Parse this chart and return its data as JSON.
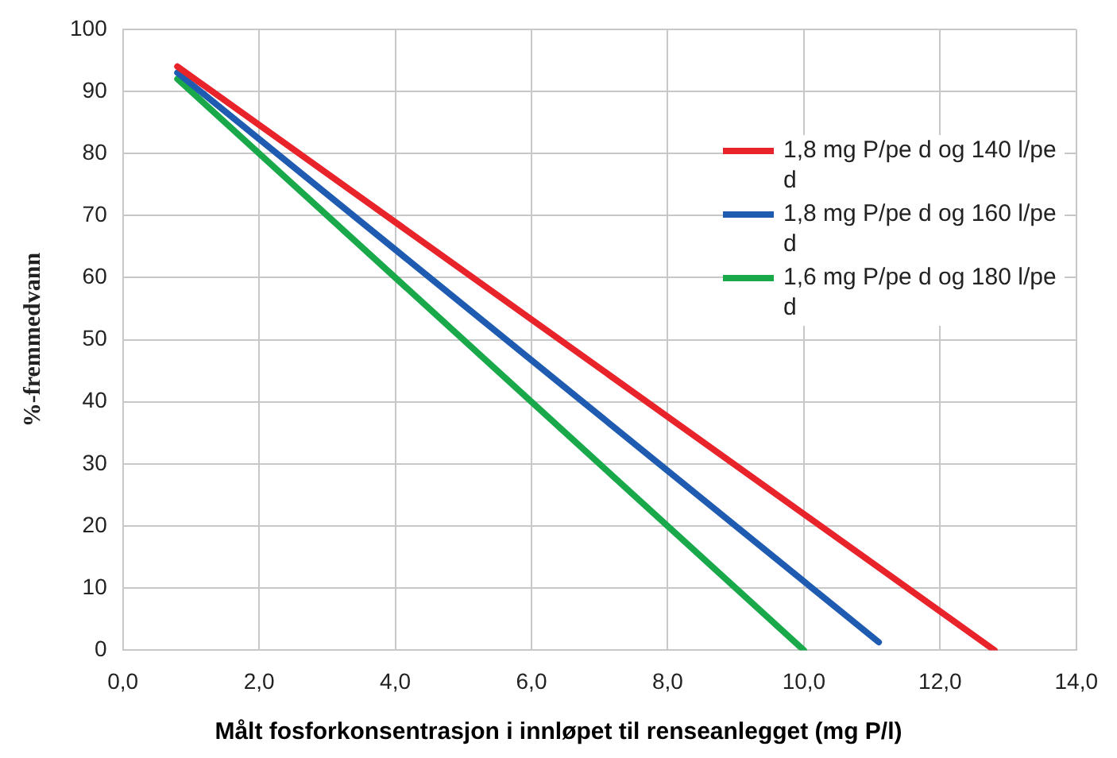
{
  "chart_data": {
    "type": "line",
    "xlabel": "Målt fosforkonsentrasjon i innløpet til renseanlegget (mg P/l)",
    "ylabel": "%-fremmedvann",
    "xlim": [
      0,
      14
    ],
    "xticks": [
      {
        "value": 0,
        "label": "0,0"
      },
      {
        "value": 2,
        "label": "2,0"
      },
      {
        "value": 4,
        "label": "4,0"
      },
      {
        "value": 6,
        "label": "6,0"
      },
      {
        "value": 8,
        "label": "8,0"
      },
      {
        "value": 10,
        "label": "10,0"
      },
      {
        "value": 12,
        "label": "12,0"
      },
      {
        "value": 14,
        "label": "14,0"
      }
    ],
    "ylim": [
      0,
      100
    ],
    "yticks": [
      0,
      10,
      20,
      30,
      40,
      50,
      60,
      70,
      80,
      90,
      100
    ],
    "grid": true,
    "legend": "right",
    "marker": "none",
    "line_style": "solid",
    "series": [
      {
        "name": "1,8 mg P/pe d og 140 l/pe d",
        "color": "#e8232a",
        "x": [
          0.8,
          12.8
        ],
        "values": [
          94,
          0
        ]
      },
      {
        "name": "1,8 mg P/pe d og 160 l/pe d",
        "color": "#1f5bb0",
        "x": [
          0.8,
          11.1
        ],
        "values": [
          93,
          1.3
        ]
      },
      {
        "name": "1,6 mg P/pe d og 180 l/pe d",
        "color": "#19a84a",
        "x": [
          0.8,
          10.0
        ],
        "values": [
          92,
          0
        ]
      }
    ]
  }
}
